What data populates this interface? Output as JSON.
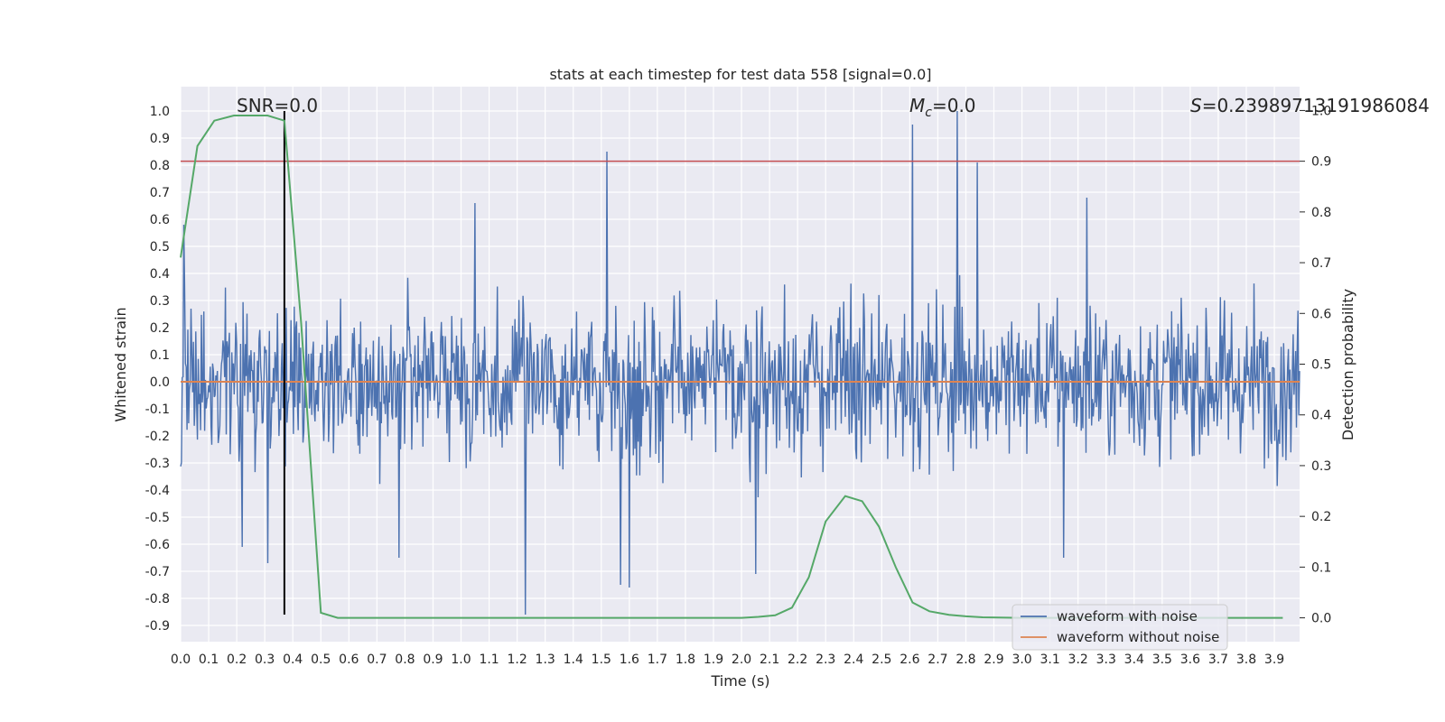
{
  "chart_data": {
    "type": "line",
    "title": "stats at each timestep for test data 558 [signal=0.0]",
    "xlabel": "Time (s)",
    "ylabel": "Whitened strain",
    "y2label": "Detection probability",
    "xlim": [
      0.0,
      3.99
    ],
    "ylim": [
      -0.96,
      1.09
    ],
    "y2lim": [
      -0.047,
      1.047
    ],
    "xticks": [
      "0.0",
      "0.1",
      "0.2",
      "0.3",
      "0.4",
      "0.5",
      "0.6",
      "0.7",
      "0.8",
      "0.9",
      "1.0",
      "1.1",
      "1.2",
      "1.3",
      "1.4",
      "1.5",
      "1.6",
      "1.7",
      "1.8",
      "1.9",
      "2.0",
      "2.1",
      "2.2",
      "2.3",
      "2.4",
      "2.5",
      "2.6",
      "2.7",
      "2.8",
      "2.9",
      "3.0",
      "3.1",
      "3.2",
      "3.3",
      "3.4",
      "3.5",
      "3.6",
      "3.7",
      "3.8",
      "3.9"
    ],
    "yticks": [
      "1.0",
      "0.9",
      "0.8",
      "0.7",
      "0.6",
      "0.5",
      "0.4",
      "0.3",
      "0.2",
      "0.1",
      "0.0",
      "-0.1",
      "-0.2",
      "-0.3",
      "-0.4",
      "-0.5",
      "-0.6",
      "-0.7",
      "-0.8",
      "-0.9"
    ],
    "y2ticks": [
      "1.0",
      "0.9",
      "0.8",
      "0.7",
      "0.6",
      "0.5",
      "0.4",
      "0.3",
      "0.2",
      "0.1",
      "0.0"
    ],
    "annotations": {
      "snr": "SNR=0.0",
      "mc_symbol": "M",
      "mc_sub": "c",
      "mc_value": "=0.0",
      "s_symbol": "S",
      "s_value": "=0.23989713191986084"
    },
    "legend": {
      "position": "lower-right",
      "entries": [
        "waveform with noise",
        "waveform without noise"
      ]
    },
    "noise": {
      "name": "waveform with noise",
      "color": "#4c72b0",
      "sample_count": 1400,
      "min": -0.86,
      "max": 1.0,
      "peaks": [
        {
          "t": 0.01,
          "v": 0.58
        },
        {
          "t": 0.22,
          "v": -0.61
        },
        {
          "t": 0.31,
          "v": -0.67
        },
        {
          "t": 0.78,
          "v": -0.65
        },
        {
          "t": 1.05,
          "v": 0.66
        },
        {
          "t": 1.23,
          "v": -0.86
        },
        {
          "t": 1.52,
          "v": 0.85
        },
        {
          "t": 1.57,
          "v": -0.75
        },
        {
          "t": 1.6,
          "v": -0.76
        },
        {
          "t": 2.05,
          "v": -0.71
        },
        {
          "t": 2.61,
          "v": 0.95
        },
        {
          "t": 2.77,
          "v": 1.0
        },
        {
          "t": 2.84,
          "v": 0.81
        },
        {
          "t": 3.15,
          "v": -0.65
        },
        {
          "t": 3.23,
          "v": 0.68
        }
      ]
    },
    "clean": {
      "name": "waveform without noise",
      "color": "#dd8452",
      "value": 0.0
    },
    "probability": {
      "name": "detection probability",
      "color": "#55a868",
      "x": [
        0.0,
        0.06,
        0.12,
        0.19,
        0.25,
        0.31,
        0.37,
        0.43,
        0.5,
        0.56,
        0.62,
        0.68,
        0.74,
        0.8,
        1.0,
        1.5,
        2.0,
        2.06,
        2.12,
        2.18,
        2.24,
        2.3,
        2.37,
        2.43,
        2.49,
        2.55,
        2.61,
        2.67,
        2.74,
        2.8,
        2.86,
        3.0,
        3.5,
        3.93
      ],
      "y": [
        0.71,
        0.93,
        0.98,
        0.99,
        0.99,
        0.99,
        0.98,
        0.58,
        0.01,
        0.0,
        0.0,
        0.0,
        0.0,
        0.0,
        0.0,
        0.0,
        0.0,
        0.002,
        0.005,
        0.02,
        0.08,
        0.19,
        0.24,
        0.23,
        0.18,
        0.1,
        0.03,
        0.013,
        0.006,
        0.003,
        0.001,
        0.0,
        0.0,
        0.0
      ]
    },
    "threshold": {
      "name": "threshold",
      "color": "#c44e52",
      "value": 0.9
    },
    "marker": {
      "name": "peak time",
      "color": "#000000",
      "x": 0.37,
      "y_from": -0.86,
      "y_to": 1.0
    }
  }
}
